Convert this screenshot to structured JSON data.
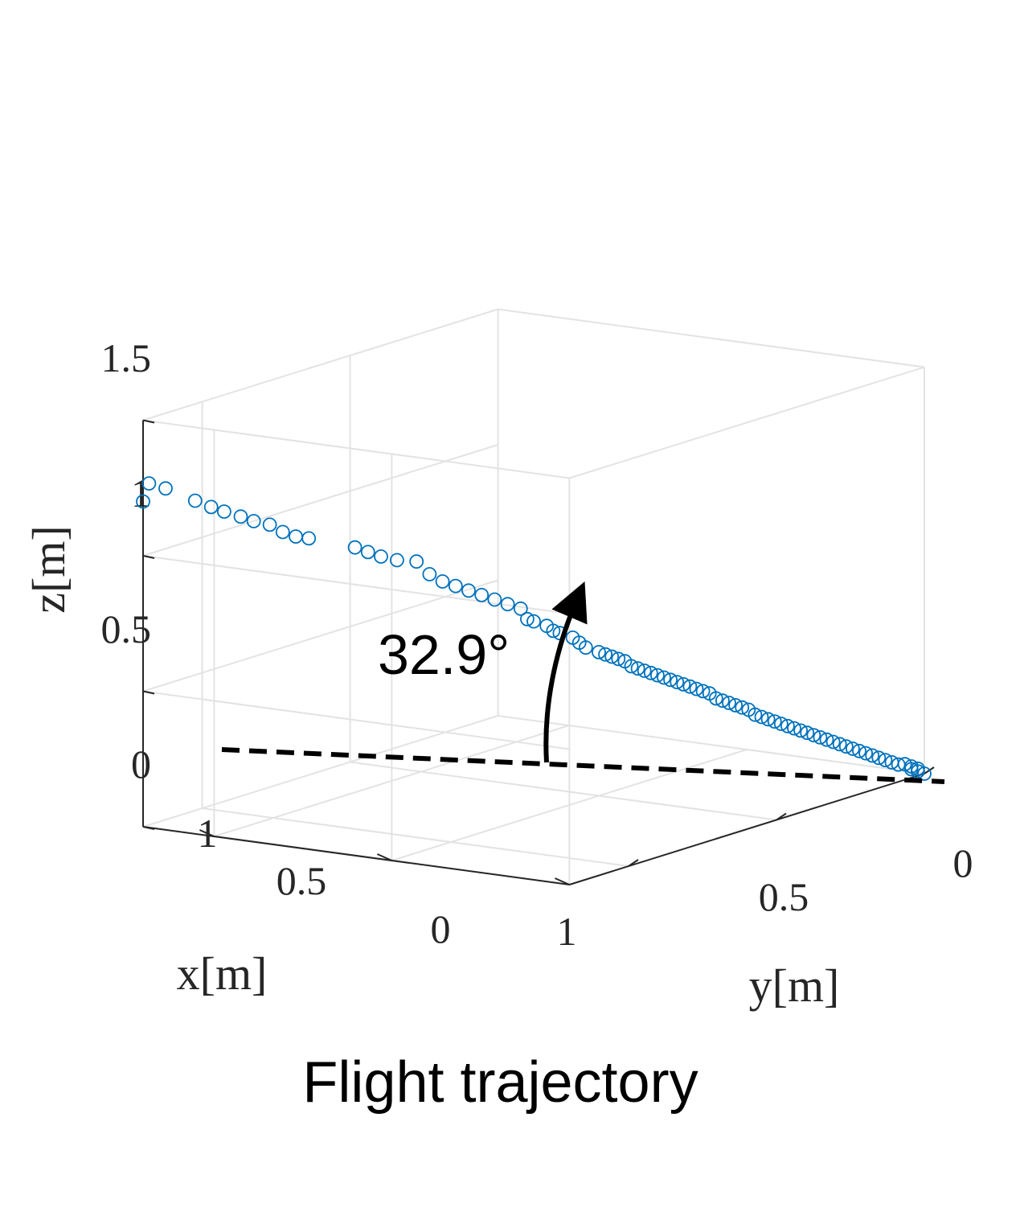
{
  "caption": "Flight trajectory",
  "chart_data": {
    "type": "scatter",
    "projection": "3d",
    "xlabel": "x[m]",
    "ylabel": "y[m]",
    "zlabel": "z[m]",
    "xlim": [
      0,
      1.2
    ],
    "ylim": [
      0,
      1.2
    ],
    "zlim": [
      0,
      1.5
    ],
    "x_ticks": [
      "0",
      "0.5",
      "1"
    ],
    "y_ticks": [
      "0",
      "0.5",
      "1"
    ],
    "z_ticks": [
      "0",
      "0.5",
      "1",
      "1.5"
    ],
    "grid": true,
    "marker": "open-circle",
    "marker_color": "#0072BD",
    "series": [
      {
        "x": [
          1.2,
          1.2,
          1.17,
          1.12,
          1.1,
          1.08,
          1.05,
          1.03,
          1.01,
          0.99,
          0.97,
          0.95,
          0.87,
          0.85,
          0.83,
          0.81,
          0.78,
          0.76,
          0.74,
          0.72,
          0.7,
          0.68,
          0.66,
          0.64,
          0.62,
          0.61,
          0.6,
          0.58,
          0.57,
          0.56,
          0.54,
          0.53,
          0.52,
          0.5,
          0.49,
          0.48,
          0.47,
          0.46,
          0.45,
          0.44,
          0.43,
          0.42,
          0.41,
          0.4,
          0.39,
          0.38,
          0.37,
          0.36,
          0.35,
          0.34,
          0.33,
          0.32,
          0.31,
          0.3,
          0.29,
          0.28,
          0.27,
          0.26,
          0.25,
          0.24,
          0.23,
          0.22,
          0.21,
          0.2,
          0.19,
          0.18,
          0.17,
          0.16,
          0.15,
          0.14,
          0.13,
          0.12,
          0.11,
          0.1,
          0.09,
          0.08,
          0.07,
          0.06,
          0.05,
          0.04,
          0.03,
          0.02,
          0.02,
          0.01,
          0.01,
          0.0
        ],
        "y": [
          1.2,
          1.18,
          1.16,
          1.12,
          1.09,
          1.07,
          1.05,
          1.03,
          1.0,
          0.98,
          0.96,
          0.94,
          0.88,
          0.86,
          0.84,
          0.81,
          0.78,
          0.76,
          0.74,
          0.72,
          0.7,
          0.68,
          0.66,
          0.64,
          0.62,
          0.61,
          0.6,
          0.58,
          0.57,
          0.56,
          0.54,
          0.53,
          0.52,
          0.5,
          0.49,
          0.48,
          0.47,
          0.46,
          0.45,
          0.44,
          0.43,
          0.42,
          0.41,
          0.4,
          0.39,
          0.38,
          0.37,
          0.36,
          0.35,
          0.34,
          0.33,
          0.32,
          0.31,
          0.3,
          0.29,
          0.28,
          0.27,
          0.26,
          0.25,
          0.24,
          0.23,
          0.22,
          0.21,
          0.2,
          0.19,
          0.18,
          0.17,
          0.16,
          0.15,
          0.14,
          0.13,
          0.12,
          0.11,
          0.1,
          0.09,
          0.08,
          0.07,
          0.06,
          0.05,
          0.04,
          0.03,
          0.02,
          0.02,
          0.01,
          0.01,
          0.0
        ],
        "z": [
          1.2,
          1.26,
          1.24,
          1.19,
          1.16,
          1.14,
          1.12,
          1.1,
          1.08,
          1.05,
          1.03,
          1.02,
          0.98,
          0.96,
          0.94,
          0.92,
          0.91,
          0.86,
          0.83,
          0.81,
          0.79,
          0.77,
          0.75,
          0.73,
          0.71,
          0.67,
          0.66,
          0.64,
          0.62,
          0.61,
          0.59,
          0.57,
          0.55,
          0.53,
          0.52,
          0.51,
          0.5,
          0.49,
          0.47,
          0.46,
          0.45,
          0.44,
          0.43,
          0.42,
          0.41,
          0.4,
          0.39,
          0.38,
          0.37,
          0.36,
          0.35,
          0.33,
          0.32,
          0.31,
          0.3,
          0.29,
          0.28,
          0.26,
          0.25,
          0.24,
          0.23,
          0.22,
          0.21,
          0.2,
          0.19,
          0.18,
          0.17,
          0.16,
          0.15,
          0.14,
          0.13,
          0.12,
          0.11,
          0.1,
          0.09,
          0.08,
          0.07,
          0.06,
          0.05,
          0.04,
          0.04,
          0.03,
          0.02,
          0.02,
          0.01,
          0.0
        ]
      }
    ],
    "annotations": [
      {
        "text": "32.9°",
        "kind": "angle-arrow"
      }
    ]
  }
}
